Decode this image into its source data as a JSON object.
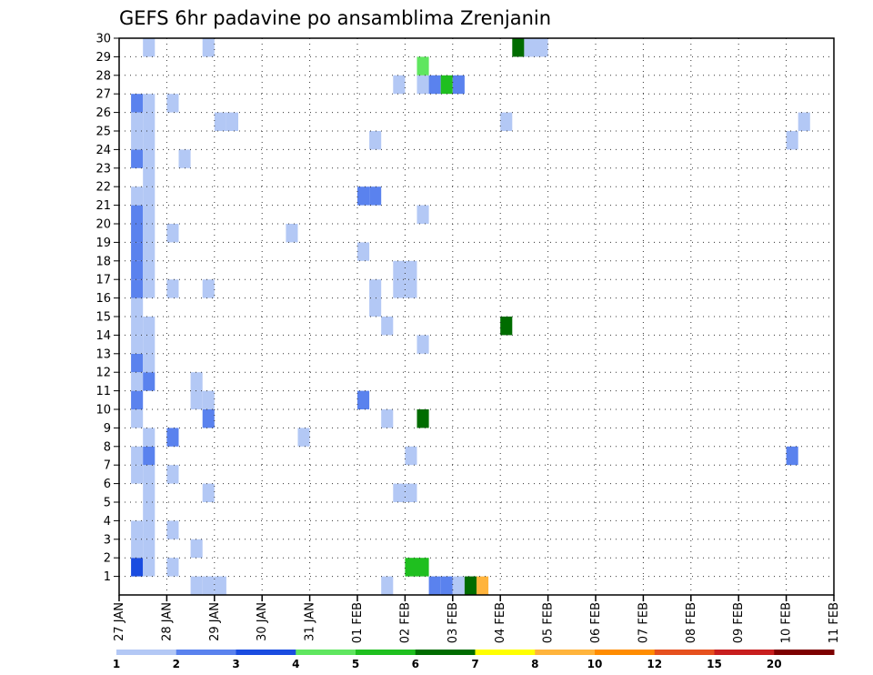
{
  "chart_data": {
    "type": "heatmap",
    "title": "GEFS 6hr padavine po ansamblima Zrenjanin",
    "xlabel": "",
    "ylabel": "",
    "x_axis": {
      "start": "27 JAN",
      "end": "11 FEB",
      "step_hours": 6,
      "tick_labels": [
        "27 JAN",
        "28 JAN",
        "29 JAN",
        "30 JAN",
        "31 JAN",
        "01 FEB",
        "02 FEB",
        "03 FEB",
        "04 FEB",
        "05 FEB",
        "06 FEB",
        "07 FEB",
        "08 FEB",
        "09 FEB",
        "10 FEB",
        "11 FEB"
      ]
    },
    "y_axis": {
      "range": [
        0,
        30
      ],
      "tick_labels": [
        "1",
        "2",
        "3",
        "4",
        "5",
        "6",
        "7",
        "8",
        "9",
        "10",
        "11",
        "12",
        "13",
        "14",
        "15",
        "16",
        "17",
        "18",
        "19",
        "20",
        "21",
        "22",
        "23",
        "24",
        "25",
        "26",
        "27",
        "28",
        "29",
        "30"
      ]
    },
    "grid": true,
    "colorbar": {
      "placement": "bottom",
      "labels": [
        "1",
        "2",
        "3",
        "4",
        "5",
        "6",
        "7",
        "8",
        "10",
        "12",
        "15",
        "20"
      ],
      "colors": [
        "#b3c8f5",
        "#5a82ee",
        "#1a4ce0",
        "#5fe65f",
        "#1fbf1f",
        "#006c00",
        "#ffff00",
        "#ffb43c",
        "#ff8c00",
        "#e6501e",
        "#c81e1e",
        "#7d0000"
      ]
    },
    "cells": [
      {
        "m": 1,
        "t": 1,
        "v": 3
      },
      {
        "m": 1,
        "t": 2,
        "v": 1
      },
      {
        "m": 1,
        "t": 4,
        "v": 1
      },
      {
        "m": 1,
        "t": 24,
        "v": 5
      },
      {
        "m": 1,
        "t": 25,
        "v": 5
      },
      {
        "m": 2,
        "t": 1,
        "v": 1
      },
      {
        "m": 2,
        "t": 2,
        "v": 1
      },
      {
        "m": 2,
        "t": 6,
        "v": 1
      },
      {
        "m": 3,
        "t": 1,
        "v": 1
      },
      {
        "m": 3,
        "t": 2,
        "v": 1
      },
      {
        "m": 3,
        "t": 4,
        "v": 1
      },
      {
        "m": 4,
        "t": 2,
        "v": 1
      },
      {
        "m": 5,
        "t": 2,
        "v": 1
      },
      {
        "m": 5,
        "t": 7,
        "v": 1
      },
      {
        "m": 5,
        "t": 23,
        "v": 1
      },
      {
        "m": 5,
        "t": 24,
        "v": 1
      },
      {
        "m": 6,
        "t": 1,
        "v": 1
      },
      {
        "m": 6,
        "t": 2,
        "v": 1
      },
      {
        "m": 6,
        "t": 4,
        "v": 1
      },
      {
        "m": 7,
        "t": 1,
        "v": 1
      },
      {
        "m": 7,
        "t": 2,
        "v": 2
      },
      {
        "m": 7,
        "t": 24,
        "v": 1
      },
      {
        "m": 7,
        "t": 56,
        "v": 2
      },
      {
        "m": 8,
        "t": 2,
        "v": 1
      },
      {
        "m": 8,
        "t": 4,
        "v": 2
      },
      {
        "m": 8,
        "t": 15,
        "v": 1
      },
      {
        "m": 9,
        "t": 1,
        "v": 1
      },
      {
        "m": 9,
        "t": 7,
        "v": 2
      },
      {
        "m": 9,
        "t": 22,
        "v": 1
      },
      {
        "m": 9,
        "t": 25,
        "v": 6
      },
      {
        "m": 10,
        "t": 1,
        "v": 2
      },
      {
        "m": 10,
        "t": 6,
        "v": 1
      },
      {
        "m": 10,
        "t": 7,
        "v": 1
      },
      {
        "m": 10,
        "t": 20,
        "v": 2
      },
      {
        "m": 11,
        "t": 1,
        "v": 1
      },
      {
        "m": 11,
        "t": 2,
        "v": 2
      },
      {
        "m": 11,
        "t": 6,
        "v": 1
      },
      {
        "m": 12,
        "t": 1,
        "v": 2
      },
      {
        "m": 12,
        "t": 2,
        "v": 1
      },
      {
        "m": 13,
        "t": 1,
        "v": 1
      },
      {
        "m": 13,
        "t": 2,
        "v": 1
      },
      {
        "m": 13,
        "t": 25,
        "v": 1
      },
      {
        "m": 14,
        "t": 1,
        "v": 1
      },
      {
        "m": 14,
        "t": 2,
        "v": 1
      },
      {
        "m": 14,
        "t": 22,
        "v": 1
      },
      {
        "m": 14,
        "t": 32,
        "v": 6
      },
      {
        "m": 15,
        "t": 1,
        "v": 1
      },
      {
        "m": 15,
        "t": 21,
        "v": 1
      },
      {
        "m": 16,
        "t": 1,
        "v": 2
      },
      {
        "m": 16,
        "t": 2,
        "v": 1
      },
      {
        "m": 16,
        "t": 4,
        "v": 1
      },
      {
        "m": 16,
        "t": 7,
        "v": 1
      },
      {
        "m": 16,
        "t": 21,
        "v": 1
      },
      {
        "m": 16,
        "t": 23,
        "v": 1
      },
      {
        "m": 16,
        "t": 24,
        "v": 1
      },
      {
        "m": 17,
        "t": 1,
        "v": 2
      },
      {
        "m": 17,
        "t": 2,
        "v": 1
      },
      {
        "m": 17,
        "t": 23,
        "v": 1
      },
      {
        "m": 17,
        "t": 24,
        "v": 1
      },
      {
        "m": 18,
        "t": 1,
        "v": 2
      },
      {
        "m": 18,
        "t": 2,
        "v": 1
      },
      {
        "m": 18,
        "t": 20,
        "v": 1
      },
      {
        "m": 19,
        "t": 1,
        "v": 2
      },
      {
        "m": 19,
        "t": 2,
        "v": 1
      },
      {
        "m": 19,
        "t": 4,
        "v": 1
      },
      {
        "m": 19,
        "t": 14,
        "v": 1
      },
      {
        "m": 20,
        "t": 1,
        "v": 2
      },
      {
        "m": 20,
        "t": 2,
        "v": 1
      },
      {
        "m": 20,
        "t": 25,
        "v": 1
      },
      {
        "m": 21,
        "t": 1,
        "v": 1
      },
      {
        "m": 21,
        "t": 2,
        "v": 1
      },
      {
        "m": 21,
        "t": 20,
        "v": 2
      },
      {
        "m": 21,
        "t": 21,
        "v": 2
      },
      {
        "m": 22,
        "t": 2,
        "v": 1
      },
      {
        "m": 23,
        "t": 1,
        "v": 2
      },
      {
        "m": 23,
        "t": 2,
        "v": 1
      },
      {
        "m": 23,
        "t": 5,
        "v": 1
      },
      {
        "m": 24,
        "t": 1,
        "v": 1
      },
      {
        "m": 24,
        "t": 2,
        "v": 1
      },
      {
        "m": 24,
        "t": 21,
        "v": 1
      },
      {
        "m": 24,
        "t": 56,
        "v": 1
      },
      {
        "m": 25,
        "t": 1,
        "v": 1
      },
      {
        "m": 25,
        "t": 2,
        "v": 1
      },
      {
        "m": 25,
        "t": 8,
        "v": 1
      },
      {
        "m": 25,
        "t": 9,
        "v": 1
      },
      {
        "m": 25,
        "t": 32,
        "v": 1
      },
      {
        "m": 25,
        "t": 57,
        "v": 1
      },
      {
        "m": 26,
        "t": 1,
        "v": 2
      },
      {
        "m": 26,
        "t": 2,
        "v": 1
      },
      {
        "m": 26,
        "t": 4,
        "v": 1
      },
      {
        "m": 27,
        "t": 23,
        "v": 1
      },
      {
        "m": 27,
        "t": 25,
        "v": 1
      },
      {
        "m": 27,
        "t": 26,
        "v": 2
      },
      {
        "m": 27,
        "t": 27,
        "v": 5
      },
      {
        "m": 27,
        "t": 28,
        "v": 2
      },
      {
        "m": 28,
        "t": 25,
        "v": 4
      },
      {
        "m": 29,
        "t": 2,
        "v": 1
      },
      {
        "m": 29,
        "t": 7,
        "v": 1
      },
      {
        "m": 29,
        "t": 33,
        "v": 6
      },
      {
        "m": 29,
        "t": 34,
        "v": 1
      },
      {
        "m": 29,
        "t": 35,
        "v": 1
      },
      {
        "m": 0,
        "t": 6,
        "v": 1
      },
      {
        "m": 0,
        "t": 7,
        "v": 1
      },
      {
        "m": 0,
        "t": 8,
        "v": 1
      },
      {
        "m": 0,
        "t": 22,
        "v": 1
      },
      {
        "m": 0,
        "t": 26,
        "v": 2
      },
      {
        "m": 0,
        "t": 27,
        "v": 2
      },
      {
        "m": 0,
        "t": 28,
        "v": 1
      },
      {
        "m": 0,
        "t": 29,
        "v": 6
      },
      {
        "m": 0,
        "t": 30,
        "v": 8
      }
    ]
  }
}
